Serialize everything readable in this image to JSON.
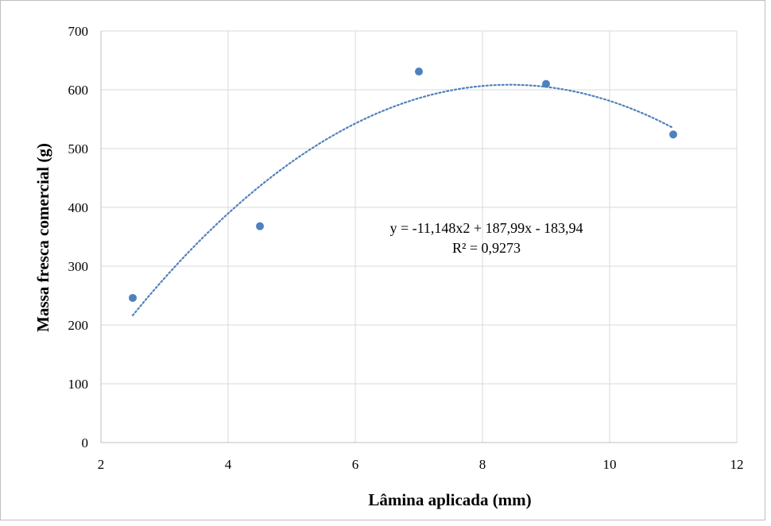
{
  "chart_data": {
    "type": "scatter",
    "title": "",
    "xlabel": "Lâmina aplicada (mm)",
    "ylabel": "Massa fresca comercial (g)",
    "xlim": [
      2,
      12
    ],
    "ylim": [
      0,
      700
    ],
    "xticks": [
      2,
      4,
      6,
      8,
      10,
      12
    ],
    "yticks": [
      0,
      100,
      200,
      300,
      400,
      500,
      600,
      700
    ],
    "grid": true,
    "legend": "none",
    "series": [
      {
        "x": [
          2.5,
          4.5,
          7.0,
          9.0,
          11.0
        ],
        "y": [
          246,
          368,
          631,
          610,
          524
        ],
        "color": "#4f81bd"
      }
    ],
    "trendline": {
      "type": "polynomial",
      "order": 2,
      "coefficients": {
        "a": -11.148,
        "b": 187.99,
        "c": -183.94
      },
      "x_range": [
        2.5,
        11.0
      ],
      "style": "dotted",
      "color": "#4f81bd"
    },
    "annotations": {
      "equation": "y = -11,148x2 + 187,99x - 183,94",
      "r_squared": "R² = 0,9273"
    }
  }
}
